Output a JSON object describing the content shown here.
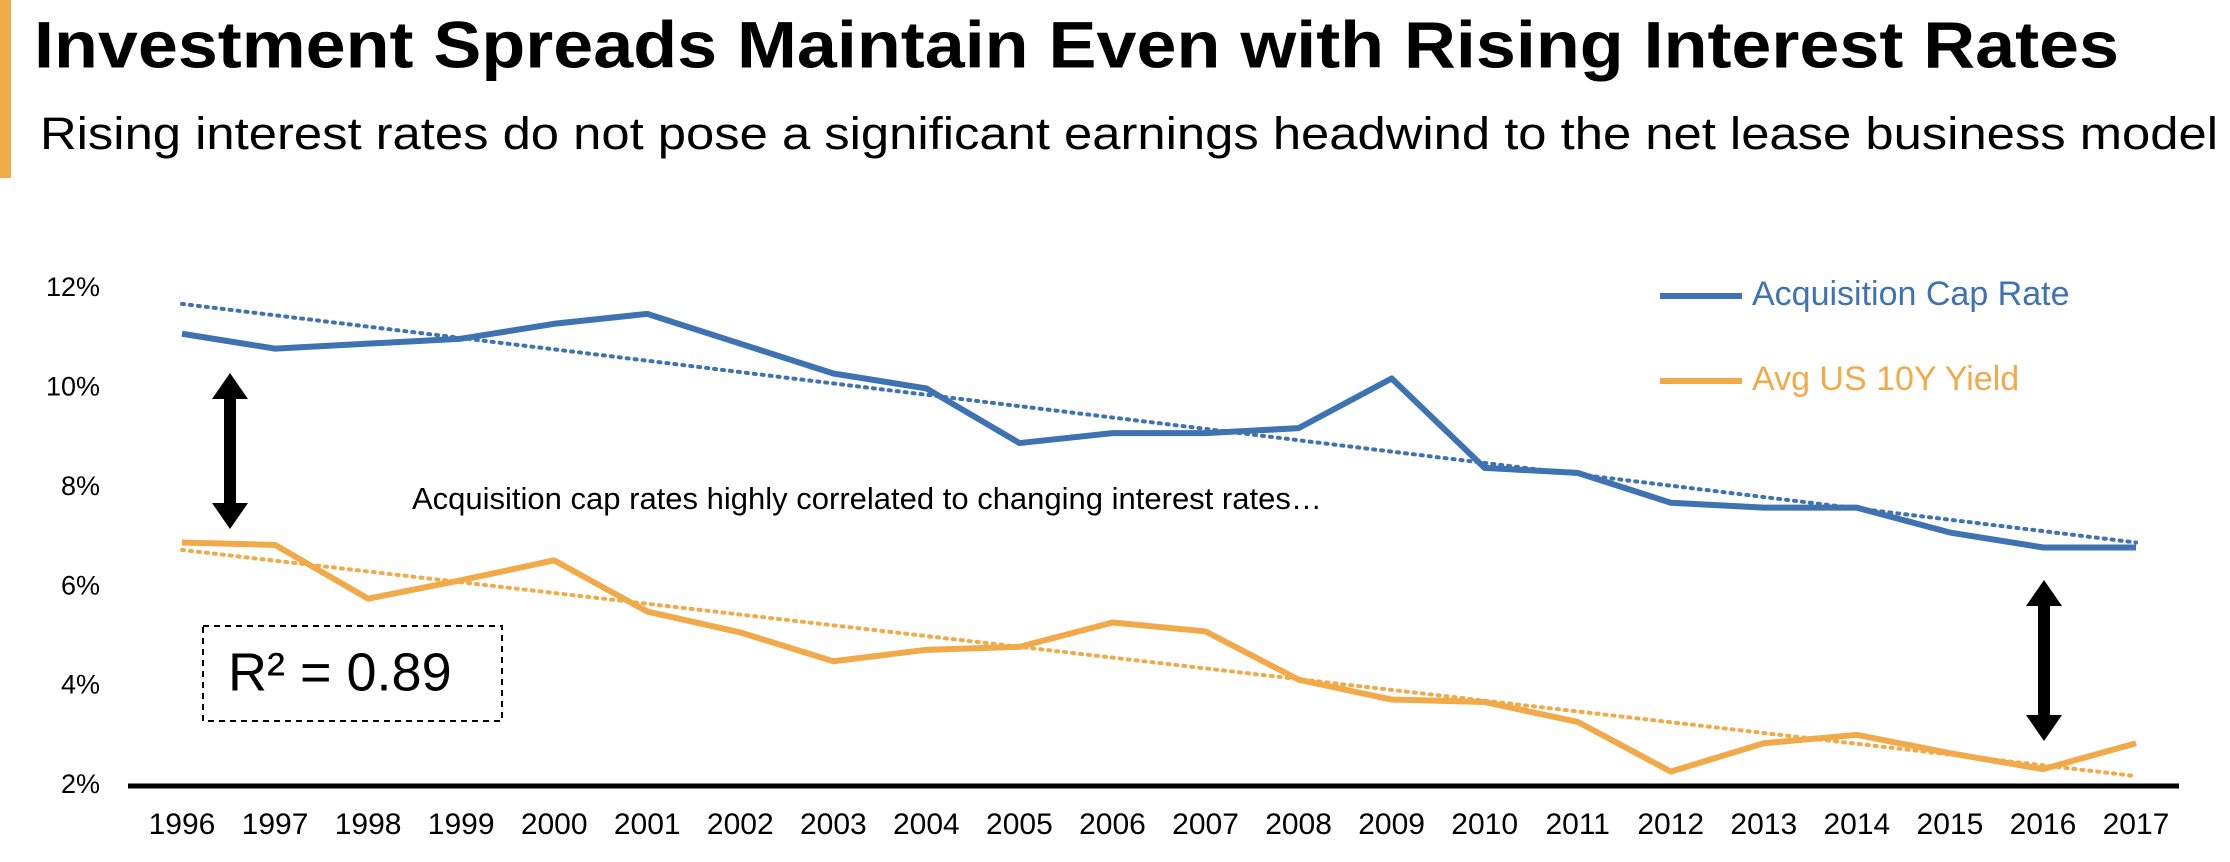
{
  "chart_data": {
    "type": "line",
    "title": "Investment Spreads Maintain Even with Rising Interest Rates",
    "subtitle": "Rising interest rates do not pose a significant earnings headwind to the net lease business model",
    "categories": [
      "1996",
      "1997",
      "1998",
      "1999",
      "2000",
      "2001",
      "2002",
      "2003",
      "2004",
      "2005",
      "2006",
      "2007",
      "2008",
      "2009",
      "2010",
      "2011",
      "2012",
      "2013",
      "2014",
      "2015",
      "2016",
      "2017"
    ],
    "series": [
      {
        "name": "Acquisition Cap Rate",
        "color": "#3f72b0",
        "values": [
          11.1,
          10.8,
          10.9,
          11.0,
          11.3,
          11.5,
          10.9,
          10.3,
          10.0,
          8.9,
          9.1,
          9.1,
          9.2,
          10.2,
          8.4,
          8.3,
          7.7,
          7.6,
          7.6,
          7.1,
          6.8,
          6.8
        ],
        "trend": [
          11.7,
          6.9
        ]
      },
      {
        "name": "Avg US 10Y Yield",
        "color": "#f0aa4a",
        "values": [
          6.9,
          6.85,
          5.77,
          6.14,
          6.54,
          5.51,
          5.09,
          4.51,
          4.74,
          4.8,
          5.29,
          5.11,
          4.14,
          3.74,
          3.69,
          3.29,
          2.29,
          2.86,
          3.03,
          2.66,
          2.34,
          2.86
        ],
        "trend": [
          6.75,
          2.2
        ]
      }
    ],
    "ylim": [
      2,
      12
    ],
    "yticks": [
      {
        "value": 2,
        "label": "2%"
      },
      {
        "value": 4,
        "label": "4%"
      },
      {
        "value": 6,
        "label": "6%"
      },
      {
        "value": 8,
        "label": "8%"
      },
      {
        "value": 10,
        "label": "10%"
      },
      {
        "value": 12,
        "label": "12%"
      }
    ],
    "grid": false,
    "legend": "top-right",
    "annotations": [
      "Acquisition cap rates highly correlated to changing interest rates…",
      "R² = 0.89"
    ]
  }
}
